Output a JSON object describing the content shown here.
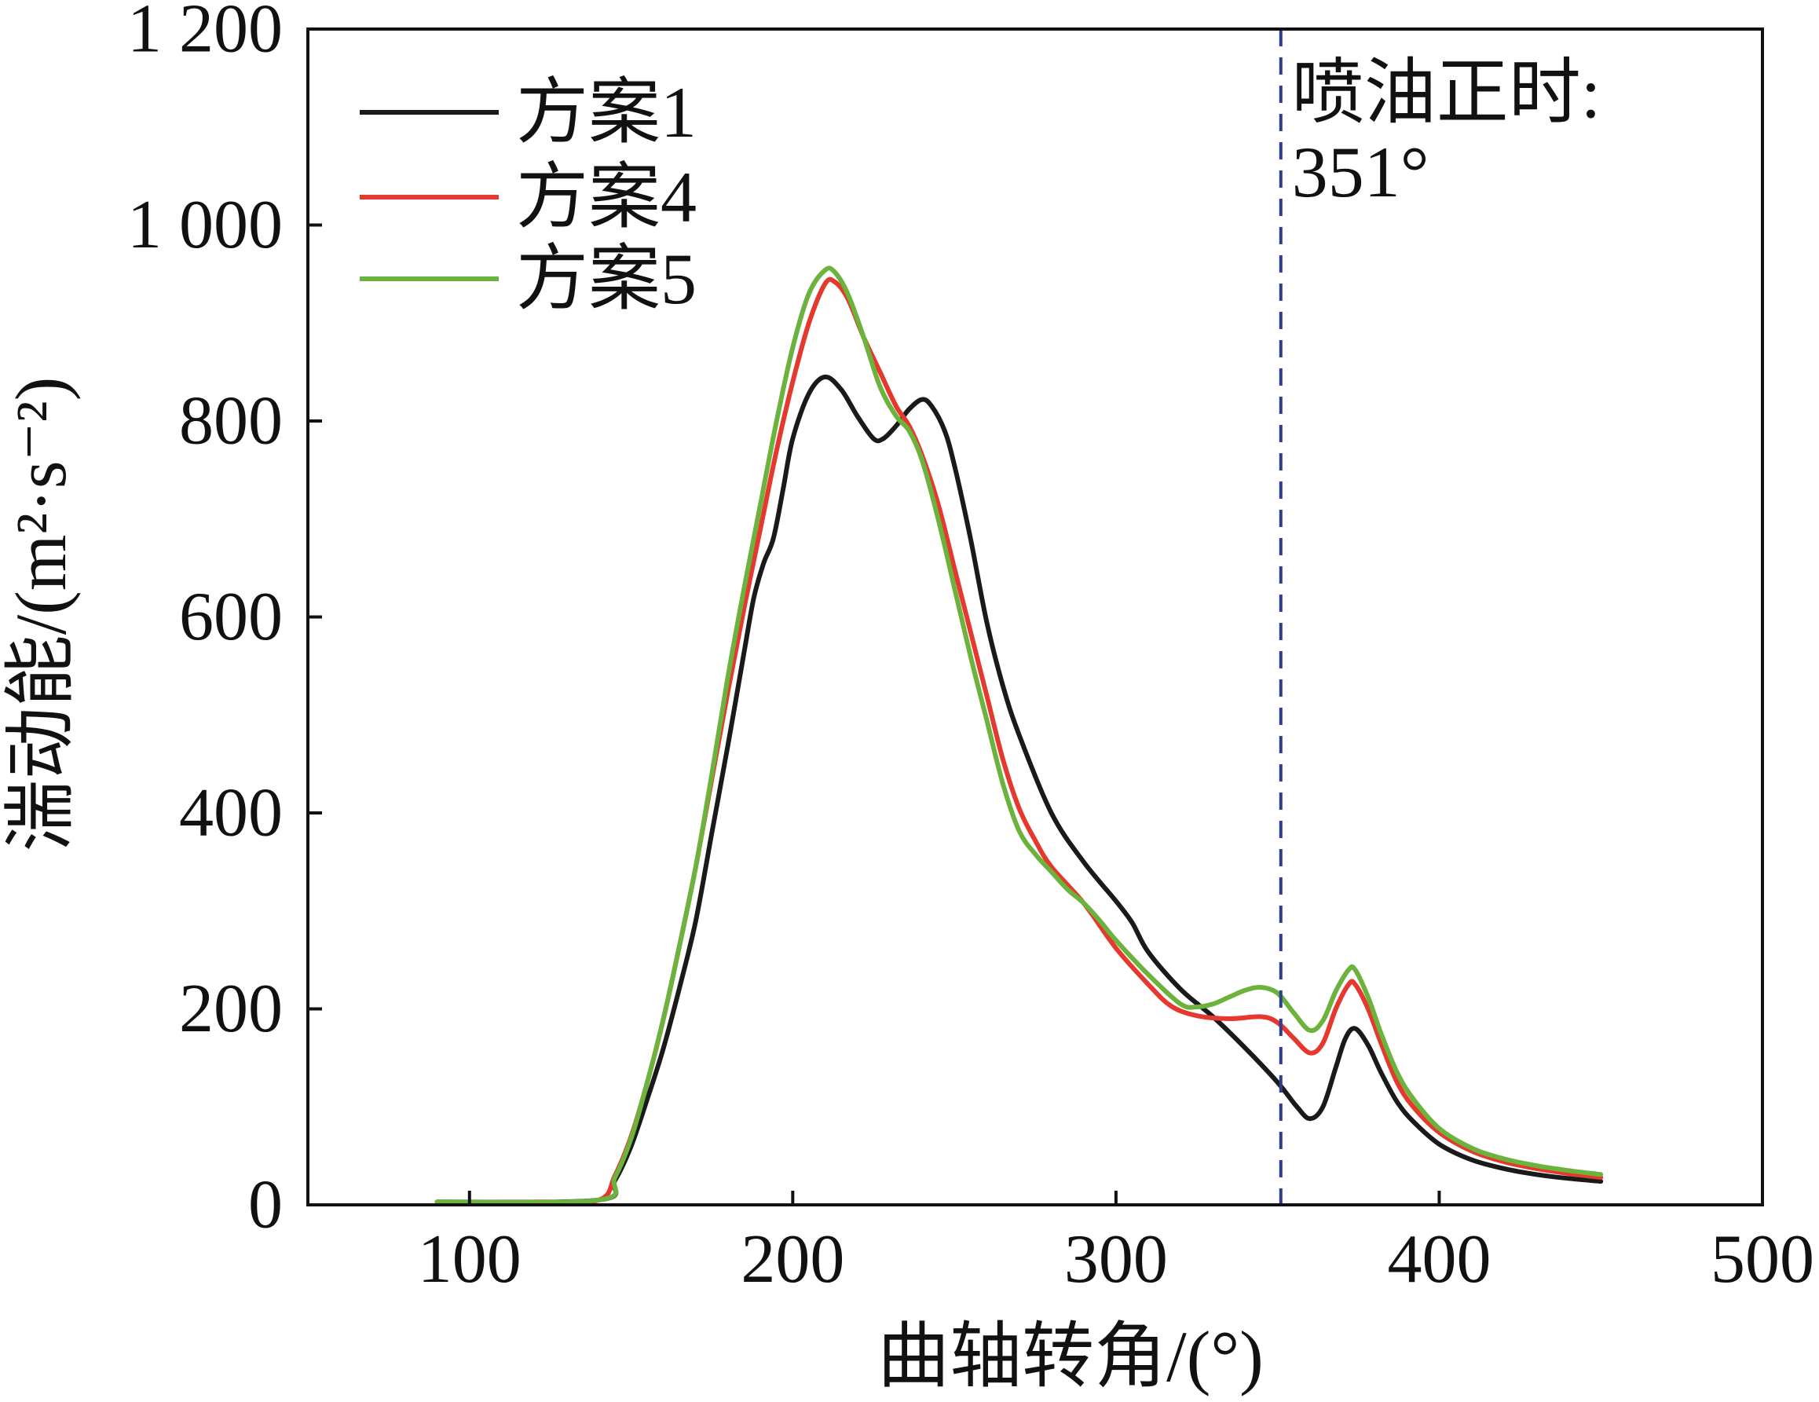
{
  "chart_data": {
    "type": "line",
    "title": "",
    "xlabel": "曲轴转角/(°)",
    "ylabel": "湍动能/(m²·s⁻²)",
    "xlim": [
      50,
      500
    ],
    "ylim": [
      0,
      1200
    ],
    "xticks": [
      100,
      200,
      300,
      400,
      500
    ],
    "xtick_labels": [
      "100",
      "200",
      "300",
      "400",
      "500"
    ],
    "yticks": [
      0,
      200,
      400,
      600,
      800,
      1000,
      1200
    ],
    "ytick_labels": [
      "0",
      "200",
      "400",
      "600",
      "800",
      "1 000",
      "1 200"
    ],
    "grid": false,
    "legend": "top-left",
    "series": [
      {
        "name": "方案1",
        "color": "#1a1a1a",
        "x": [
          90,
          140,
          145,
          150,
          155,
          160,
          165,
          170,
          175,
          180,
          185,
          188,
          191,
          194,
          197,
          200,
          205,
          210,
          215,
          220,
          225,
          228,
          232,
          236,
          240,
          243,
          247,
          250,
          255,
          260,
          265,
          270,
          280,
          290,
          300,
          305,
          310,
          320,
          330,
          340,
          350,
          356,
          360,
          364,
          368,
          371,
          374,
          378,
          382,
          387,
          392,
          400,
          410,
          420,
          430,
          440,
          450
        ],
        "y": [
          3,
          5,
          25,
          60,
          108,
          160,
          222,
          290,
          380,
          470,
          565,
          620,
          655,
          680,
          730,
          782,
          828,
          845,
          832,
          805,
          782,
          782,
          795,
          812,
          822,
          815,
          790,
          755,
          680,
          595,
          530,
          480,
          400,
          350,
          310,
          288,
          258,
          220,
          192,
          160,
          125,
          100,
          88,
          100,
          140,
          170,
          180,
          163,
          135,
          105,
          85,
          62,
          46,
          37,
          31,
          27,
          24
        ]
      },
      {
        "name": "方案4",
        "color": "#e5382e",
        "x": [
          120,
          140,
          145,
          150,
          155,
          160,
          165,
          170,
          175,
          180,
          185,
          190,
          195,
          200,
          205,
          210,
          213,
          217,
          222,
          227,
          232,
          236,
          240,
          245,
          250,
          255,
          260,
          265,
          270,
          275,
          280,
          290,
          300,
          310,
          317,
          325,
          335,
          345,
          350,
          355,
          360,
          364,
          368,
          372,
          374,
          378,
          382,
          387,
          392,
          400,
          410,
          420,
          430,
          440,
          450
        ],
        "y": [
          3,
          5,
          30,
          70,
          125,
          190,
          265,
          345,
          435,
          525,
          610,
          690,
          770,
          840,
          900,
          940,
          942,
          925,
          885,
          850,
          815,
          795,
          765,
          715,
          650,
          585,
          520,
          455,
          405,
          372,
          345,
          308,
          262,
          225,
          203,
          193,
          190,
          192,
          186,
          170,
          155,
          165,
          200,
          225,
          225,
          200,
          165,
          125,
          100,
          74,
          55,
          44,
          37,
          32,
          28
        ]
      },
      {
        "name": "方案5",
        "color": "#6cb33e",
        "x": [
          90,
          140,
          145,
          150,
          155,
          160,
          165,
          170,
          175,
          180,
          185,
          190,
          195,
          200,
          205,
          210,
          213,
          217,
          222,
          227,
          232,
          236,
          240,
          245,
          250,
          255,
          260,
          265,
          270,
          275,
          280,
          285,
          290,
          295,
          300,
          310,
          320,
          325,
          330,
          335,
          340,
          345,
          350,
          355,
          360,
          364,
          368,
          372,
          374,
          378,
          382,
          387,
          392,
          400,
          410,
          420,
          430,
          440,
          450
        ],
        "y": [
          3,
          5,
          28,
          68,
          125,
          190,
          265,
          345,
          440,
          540,
          630,
          715,
          800,
          875,
          930,
          954,
          952,
          930,
          885,
          835,
          805,
          790,
          760,
          700,
          630,
          560,
          495,
          430,
          382,
          358,
          340,
          322,
          308,
          290,
          270,
          235,
          205,
          202,
          205,
          212,
          219,
          222,
          216,
          196,
          178,
          188,
          218,
          240,
          240,
          212,
          175,
          135,
          108,
          78,
          58,
          47,
          40,
          35,
          31
        ]
      }
    ],
    "annotations": [
      {
        "type": "vline",
        "x": 351,
        "color": "#2d3e8c",
        "style": "dashed",
        "text": [
          "喷油正时:",
          "351°"
        ]
      }
    ]
  }
}
